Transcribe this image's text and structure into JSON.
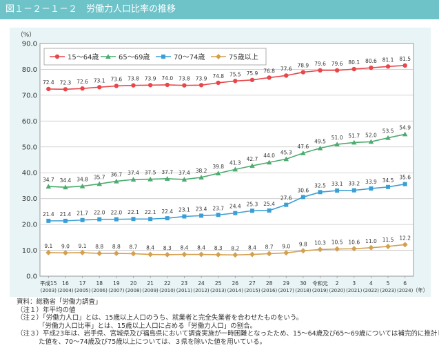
{
  "header": {
    "title": "図１－２－１－２　労働力人口比率の推移"
  },
  "chart_data": {
    "type": "line",
    "ylabel": "（%）",
    "ylim": [
      0,
      90
    ],
    "yticks": [
      "0.0",
      "10.0",
      "20.0",
      "30.0",
      "40.0",
      "50.0",
      "60.0",
      "70.0",
      "80.0",
      "90.0"
    ],
    "x_unit": "（年）",
    "categories": [
      "平成15",
      "16",
      "17",
      "18",
      "19",
      "20",
      "21",
      "22",
      "23",
      "24",
      "25",
      "26",
      "27",
      "28",
      "29",
      "30",
      "令和元",
      "2",
      "3",
      "4",
      "5",
      "6"
    ],
    "categories_western": [
      "(2003)",
      "(2004)",
      "(2005)",
      "(2006)",
      "(2007)",
      "(2008)",
      "(2009)",
      "(2010)",
      "(2011)",
      "(2012)",
      "(2013)",
      "(2014)",
      "(2015)",
      "(2016)",
      "(2017)",
      "(2018)",
      "(2019)",
      "(2020)",
      "(2021)",
      "(2022)",
      "(2023)",
      "(2024)"
    ],
    "grid": true,
    "legend_position": "top-left",
    "series": [
      {
        "name": "15～64歳",
        "color": "#e8474a",
        "marker": "circle",
        "values": [
          72.4,
          72.3,
          72.6,
          73.1,
          73.6,
          73.8,
          73.9,
          74.0,
          73.8,
          73.9,
          74.8,
          75.5,
          75.9,
          76.8,
          77.6,
          78.9,
          79.6,
          79.6,
          80.1,
          80.6,
          81.1,
          81.5
        ]
      },
      {
        "name": "65～69歳",
        "color": "#4cab6e",
        "marker": "triangle",
        "values": [
          34.7,
          34.4,
          34.8,
          35.7,
          36.7,
          37.4,
          37.5,
          37.7,
          37.4,
          38.2,
          39.8,
          41.3,
          42.7,
          44.0,
          45.3,
          47.6,
          49.5,
          51.0,
          51.7,
          52.0,
          53.5,
          54.9
        ]
      },
      {
        "name": "70～74歳",
        "color": "#3b9fd5",
        "marker": "square",
        "values": [
          21.4,
          21.4,
          21.7,
          22.0,
          22.0,
          22.1,
          22.1,
          22.4,
          23.1,
          23.4,
          23.7,
          24.4,
          25.3,
          25.4,
          27.6,
          30.6,
          32.5,
          33.1,
          33.2,
          33.9,
          34.5,
          35.6
        ]
      },
      {
        "name": "75歳以上",
        "color": "#d4a050",
        "marker": "diamond",
        "values": [
          9.1,
          9.0,
          9.1,
          8.8,
          8.8,
          8.7,
          8.4,
          8.3,
          8.4,
          8.4,
          8.3,
          8.2,
          8.4,
          8.7,
          9.0,
          9.8,
          10.3,
          10.5,
          10.6,
          11.0,
          11.5,
          12.2
        ]
      }
    ]
  },
  "notes": {
    "source": "資料：総務省「労働力調査」",
    "note1": "（注１）年平均の値",
    "note2a": "（注２）「労働力人口」とは、15歳以上人口のうち、就業者と完全失業者を合わせたものをいう。",
    "note2b": "「労働力人口比率」とは、15歳以上人口に占める「労働力人口」の割合。",
    "note3a": "（注３）平成23年は、岩手県、宮城県及び福島県において調査実施が一時困難となったため、15～64歳及び65～69歳については補完的に推計し",
    "note3b": "た値を、70～74歳及び75歳以上については、３県を除いた値を用いている。"
  }
}
